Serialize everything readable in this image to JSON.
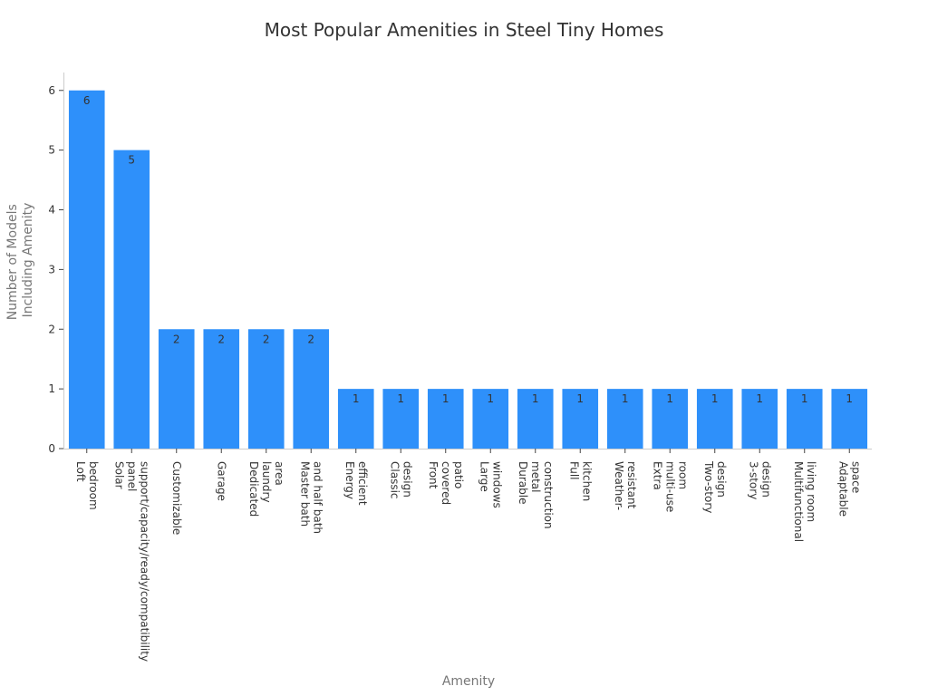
{
  "chart_data": {
    "type": "bar",
    "title": "Most Popular Amenities in Steel Tiny Homes",
    "xlabel": "Amenity",
    "ylabel": [
      "Number of Models",
      "Including Amenity"
    ],
    "ylim": [
      0,
      6.3
    ],
    "yticks": [
      0,
      1,
      2,
      3,
      4,
      5,
      6
    ],
    "grid": false,
    "bar_color": "#2e90fa",
    "categories": [
      [
        "Loft",
        "bedroom"
      ],
      [
        "Solar",
        "panel",
        "support/capacity/ready/compatibility"
      ],
      [
        "Customizable"
      ],
      [
        "Garage"
      ],
      [
        "Dedicated",
        "laundry",
        "area"
      ],
      [
        "Master bath",
        "and half bath"
      ],
      [
        "Energy",
        "efficient"
      ],
      [
        "Classic",
        "design"
      ],
      [
        "Front",
        "covered",
        "patio"
      ],
      [
        "Large",
        "windows"
      ],
      [
        "Durable",
        "metal",
        "construction"
      ],
      [
        "Full",
        "kitchen"
      ],
      [
        "Weather-",
        "resistant"
      ],
      [
        "Extra",
        "multi-use",
        "room"
      ],
      [
        "Two-story",
        "design"
      ],
      [
        "3-story",
        "design"
      ],
      [
        "Multifunctional",
        "living room"
      ],
      [
        "Adaptable",
        "space"
      ]
    ],
    "values": [
      6,
      5,
      2,
      2,
      2,
      2,
      1,
      1,
      1,
      1,
      1,
      1,
      1,
      1,
      1,
      1,
      1,
      1
    ]
  }
}
